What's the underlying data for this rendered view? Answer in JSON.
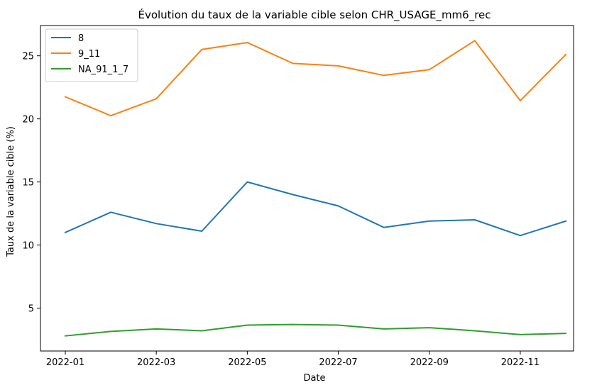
{
  "chart_data": {
    "type": "line",
    "title": "Évolution du taux de la variable cible selon CHR_USAGE_mm6_rec",
    "xlabel": "Date",
    "ylabel": "Taux de la variable cible (%)",
    "x": [
      "2022-01",
      "2022-02",
      "2022-03",
      "2022-04",
      "2022-05",
      "2022-06",
      "2022-07",
      "2022-08",
      "2022-09",
      "2022-10",
      "2022-11",
      "2022-12"
    ],
    "x_ticks": [
      "2022-01",
      "2022-03",
      "2022-05",
      "2022-07",
      "2022-09",
      "2022-11"
    ],
    "y_ticks": [
      5,
      10,
      15,
      20,
      25
    ],
    "ylim": [
      1.6,
      27.4
    ],
    "grid": false,
    "legend_position": "top-left",
    "series": [
      {
        "name": "8",
        "color": "#1f77b4",
        "values": [
          11.0,
          12.6,
          11.7,
          11.1,
          15.0,
          14.0,
          13.1,
          11.4,
          11.9,
          12.0,
          10.75,
          11.9
        ]
      },
      {
        "name": "9_11",
        "color": "#ff7f0e",
        "values": [
          21.75,
          20.25,
          21.6,
          25.5,
          26.05,
          24.4,
          24.2,
          23.45,
          23.9,
          26.2,
          21.45,
          25.1
        ]
      },
      {
        "name": "NA_91_1_7",
        "color": "#2ca02c",
        "values": [
          2.8,
          3.15,
          3.35,
          3.2,
          3.65,
          3.7,
          3.65,
          3.35,
          3.45,
          3.2,
          2.9,
          3.0
        ]
      }
    ]
  }
}
